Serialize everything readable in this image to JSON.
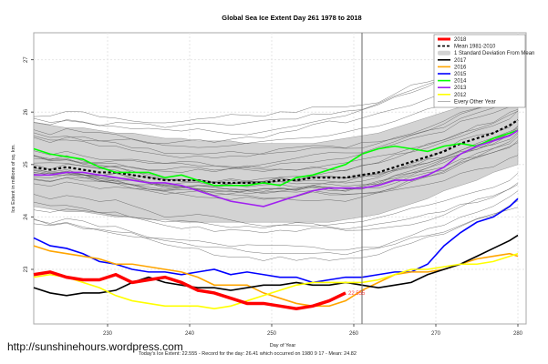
{
  "url_label": "http://sunshinehours.wordpress.com",
  "footer": "Today's Ice Extent: 22.555  - Record for the day: 26.41 which occurred on 1980 9 17  - Mean: 24.82",
  "chart_data": {
    "type": "line",
    "title": "Global Sea Ice Extent Day 261 1978 to 2018",
    "xlabel": "Day of Year",
    "ylabel": "Ice Extent in millions of sq. km.",
    "xlim": [
      221,
      281
    ],
    "ylim": [
      22.0,
      27.5
    ],
    "xticks": [
      230,
      240,
      250,
      260,
      270,
      280
    ],
    "yticks": [
      23,
      24,
      25,
      26,
      27
    ],
    "grid": true,
    "current_day": 261,
    "current_value_label": "22.555",
    "legend_position": "top-right",
    "legend": [
      {
        "label": "2018",
        "color": "#ff0000",
        "style": "thick"
      },
      {
        "label": "Mean 1981-2010",
        "color": "#000000",
        "style": "dashed"
      },
      {
        "label": "1 Standard Deviation From Mean",
        "color": "#d3d3d3",
        "style": "band"
      },
      {
        "label": "2017",
        "color": "#000000",
        "style": "solid"
      },
      {
        "label": "2016",
        "color": "#ffa500",
        "style": "solid"
      },
      {
        "label": "2015",
        "color": "#0000ff",
        "style": "solid"
      },
      {
        "label": "2014",
        "color": "#00ff00",
        "style": "solid"
      },
      {
        "label": "2013",
        "color": "#a020f0",
        "style": "solid"
      },
      {
        "label": "2012",
        "color": "#ffff00",
        "style": "solid"
      },
      {
        "label": "Every Other Year",
        "color": "#808080",
        "style": "thin"
      }
    ],
    "x": [
      221,
      223,
      225,
      227,
      229,
      231,
      233,
      235,
      237,
      239,
      241,
      243,
      245,
      247,
      249,
      251,
      253,
      255,
      257,
      259,
      261,
      263,
      265,
      267,
      269,
      271,
      273,
      275,
      277,
      279,
      280
    ],
    "band": {
      "upper": [
        25.8,
        25.75,
        25.7,
        25.7,
        25.65,
        25.6,
        25.6,
        25.55,
        25.5,
        25.5,
        25.45,
        25.45,
        25.45,
        25.4,
        25.4,
        25.4,
        25.4,
        25.4,
        25.45,
        25.5,
        25.55,
        25.6,
        25.7,
        25.8,
        25.9,
        26.0,
        26.1,
        26.2,
        26.3,
        26.4,
        26.45
      ],
      "lower": [
        24.2,
        24.15,
        24.1,
        24.1,
        24.05,
        24.0,
        24.0,
        23.95,
        23.95,
        23.9,
        23.9,
        23.9,
        23.9,
        23.9,
        23.9,
        23.9,
        23.9,
        23.9,
        23.9,
        23.95,
        24.0,
        24.05,
        24.15,
        24.25,
        24.35,
        24.5,
        24.6,
        24.7,
        24.85,
        24.95,
        25.0
      ]
    },
    "series": [
      {
        "name": "Mean 1981-2010",
        "color": "#000000",
        "dash": true,
        "values": [
          24.95,
          24.9,
          24.95,
          24.9,
          24.85,
          24.85,
          24.8,
          24.75,
          24.7,
          24.7,
          24.7,
          24.65,
          24.65,
          24.65,
          24.65,
          24.7,
          24.7,
          24.75,
          24.75,
          24.75,
          24.8,
          24.85,
          24.95,
          25.05,
          25.15,
          25.25,
          25.4,
          25.5,
          25.6,
          25.75,
          25.85
        ]
      },
      {
        "name": "2014",
        "color": "#00ff00",
        "values": [
          25.3,
          25.2,
          25.15,
          25.1,
          24.95,
          24.85,
          24.85,
          24.85,
          24.75,
          24.8,
          24.7,
          24.6,
          24.6,
          24.6,
          24.65,
          24.6,
          24.75,
          24.8,
          24.9,
          25.0,
          25.2,
          25.3,
          25.35,
          25.3,
          25.25,
          25.35,
          25.4,
          25.35,
          25.5,
          25.6,
          25.65
        ]
      },
      {
        "name": "2013",
        "color": "#a020f0",
        "values": [
          24.8,
          24.8,
          24.85,
          24.85,
          24.8,
          24.75,
          24.7,
          24.65,
          24.65,
          24.6,
          24.5,
          24.4,
          24.3,
          24.25,
          24.2,
          24.3,
          24.4,
          24.5,
          24.55,
          24.55,
          24.55,
          24.6,
          24.7,
          24.7,
          24.8,
          24.95,
          25.2,
          25.35,
          25.45,
          25.55,
          25.65
        ]
      },
      {
        "name": "2015",
        "color": "#0000ff",
        "values": [
          23.6,
          23.45,
          23.4,
          23.3,
          23.15,
          23.1,
          23.0,
          22.95,
          22.95,
          22.9,
          22.95,
          23.0,
          22.9,
          22.95,
          22.9,
          22.85,
          22.85,
          22.75,
          22.8,
          22.85,
          22.85,
          22.9,
          22.95,
          22.95,
          23.1,
          23.45,
          23.7,
          23.9,
          24.0,
          24.2,
          24.35
        ]
      },
      {
        "name": "2016",
        "color": "#ffa500",
        "values": [
          23.45,
          23.35,
          23.3,
          23.25,
          23.2,
          23.1,
          23.1,
          23.05,
          23.0,
          22.95,
          22.85,
          22.7,
          22.7,
          22.7,
          22.55,
          22.45,
          22.35,
          22.3,
          22.3,
          22.4,
          22.6,
          22.75,
          22.9,
          22.95,
          22.95,
          23.0,
          23.1,
          23.2,
          23.25,
          23.3,
          23.25
        ]
      },
      {
        "name": "2017",
        "color": "#000000",
        "values": [
          22.65,
          22.55,
          22.5,
          22.55,
          22.55,
          22.6,
          22.75,
          22.85,
          22.75,
          22.7,
          22.65,
          22.65,
          22.6,
          22.65,
          22.7,
          22.7,
          22.75,
          22.7,
          22.7,
          22.75,
          22.7,
          22.65,
          22.7,
          22.75,
          22.9,
          23.0,
          23.1,
          23.25,
          23.4,
          23.55,
          23.65
        ]
      },
      {
        "name": "2012",
        "color": "#ffff00",
        "values": [
          22.85,
          22.9,
          22.85,
          22.75,
          22.65,
          22.5,
          22.4,
          22.35,
          22.3,
          22.3,
          22.3,
          22.25,
          22.3,
          22.4,
          22.5,
          22.6,
          22.7,
          22.75,
          22.75,
          22.75,
          22.75,
          22.8,
          22.9,
          23.0,
          23.0,
          23.05,
          23.1,
          23.1,
          23.15,
          23.25,
          23.3
        ]
      },
      {
        "name": "2018",
        "color": "#ff0000",
        "thick": true,
        "values": [
          22.9,
          22.95,
          22.85,
          22.8,
          22.8,
          22.9,
          22.75,
          22.8,
          22.85,
          22.75,
          22.6,
          22.55,
          22.45,
          22.35,
          22.35,
          22.3,
          22.25,
          22.3,
          22.4,
          22.55
        ]
      }
    ],
    "other_years_count": 30
  }
}
